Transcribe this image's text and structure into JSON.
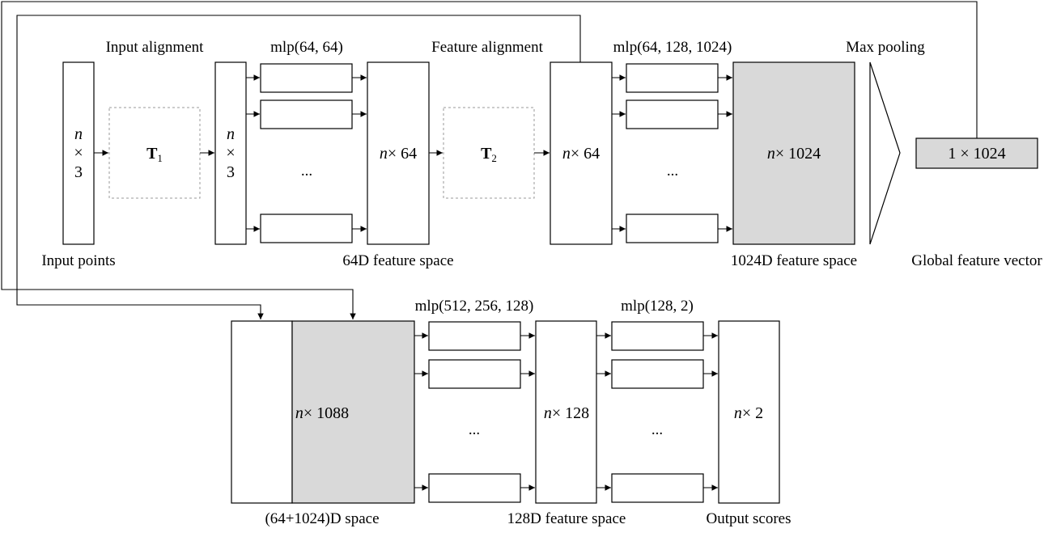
{
  "top": {
    "input_alignment": "Input alignment",
    "mlp1": "mlp(64, 64)",
    "feature_alignment": "Feature alignment",
    "mlp2": "mlp(64, 128, 1024)",
    "max_pooling": "Max pooling",
    "input_points": "Input points",
    "feat64_space": "64D feature space",
    "feat1024_space": "1024D feature space",
    "global_vector": "Global feature vector",
    "input_n": "n",
    "input_times": "×",
    "input_dim": "3",
    "t1": "T",
    "t1_sub": "1",
    "aligned_n": "n",
    "aligned_times": "×",
    "aligned_dim": "3",
    "feat64_n": "n",
    "feat64_rest": "× 64",
    "t2": "T",
    "t2_sub": "2",
    "feat64b_n": "n",
    "feat64b_rest": "× 64",
    "feat1024_n": "n",
    "feat1024_rest": "× 1024",
    "global_size": "1 × 1024",
    "ellipsis1": "...",
    "ellipsis2": "..."
  },
  "bottom": {
    "mlp3": "mlp(512, 256, 128)",
    "mlp4": "mlp(128, 2)",
    "concat_space": "(64+1024)D space",
    "feat128_space": "128D feature space",
    "output_scores": "Output scores",
    "concat_n": "n",
    "concat_rest": "× 1088",
    "feat128_n": "n",
    "feat128_rest": "× 128",
    "out_n": "n",
    "out_rest": "× 2",
    "ellipsis3": "...",
    "ellipsis4": "..."
  },
  "colors": {
    "gray_fill": "#d9d9d9",
    "dashed_border": "#9a9a9a",
    "stroke": "#000000"
  }
}
